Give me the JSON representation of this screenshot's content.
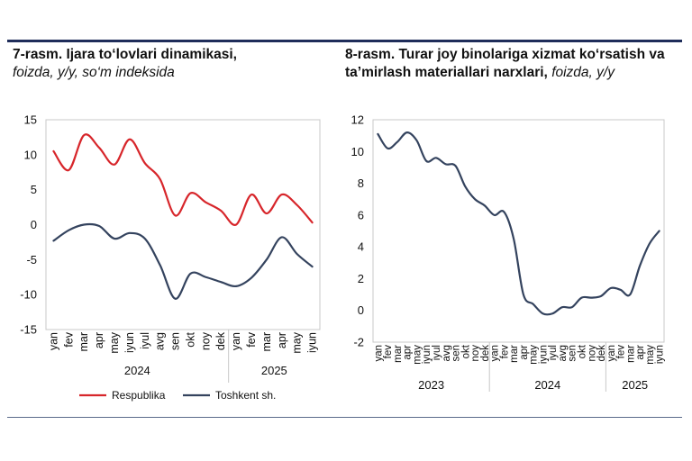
{
  "charts": [
    {
      "title": "7-rasm. Ijara to‘lovlari dinamikasi,",
      "subtitle": "foizda, y/y, so‘m indeksida"
    },
    {
      "title": "8-rasm. Turar joy binolariga xizmat ko‘rsatish va ta’mirlash materiallari narxlari,",
      "subtitle": "foizda, y/y"
    }
  ],
  "chart_data": [
    {
      "type": "line",
      "title": "7-rasm. Ijara to‘lovlari dinamikasi, foizda, y/y, so‘m indeksida",
      "categories": [
        "yan",
        "fev",
        "mar",
        "apr",
        "may",
        "iyun",
        "iyul",
        "avg",
        "sen",
        "okt",
        "noy",
        "dek",
        "yan",
        "fev",
        "mar",
        "apr",
        "may",
        "iyun"
      ],
      "year_groups": [
        {
          "label": "2024",
          "count": 12
        },
        {
          "label": "2025",
          "count": 6
        }
      ],
      "yticks": [
        15,
        10,
        5,
        0,
        -5,
        -10,
        -15
      ],
      "ylim": [
        -15,
        15
      ],
      "series": [
        {
          "name": "Respublika",
          "color": "#d7262b",
          "values": [
            10.5,
            7.8,
            12.8,
            11,
            8.6,
            12.2,
            8.8,
            6.5,
            1.3,
            4.5,
            3.2,
            2,
            0,
            4.3,
            1.6,
            4.3,
            2.8,
            0.3
          ]
        },
        {
          "name": "Toshkent sh.",
          "color": "#34435e",
          "values": [
            -2.3,
            -0.8,
            0,
            -0.2,
            -2,
            -1.2,
            -2,
            -5.8,
            -10.6,
            -7,
            -7.5,
            -8.2,
            -8.8,
            -7.6,
            -5,
            -1.8,
            -4.2,
            -6
          ]
        }
      ]
    },
    {
      "type": "line",
      "title": "8-rasm. Turar joy binolariga xizmat ko‘rsatish va ta’mirlash materiallari narxlari, foizda, y/y",
      "categories": [
        "yan",
        "fev",
        "mar",
        "apr",
        "may",
        "iyun",
        "iyul",
        "avg",
        "sen",
        "okt",
        "noy",
        "dek",
        "yan",
        "fev",
        "mar",
        "apr",
        "may",
        "iyun",
        "iyul",
        "avg",
        "sen",
        "okt",
        "noy",
        "dek",
        "yan",
        "fev",
        "mar",
        "apr",
        "may",
        "iyun"
      ],
      "year_groups": [
        {
          "label": "2023",
          "count": 12
        },
        {
          "label": "2024",
          "count": 12
        },
        {
          "label": "2025",
          "count": 6
        }
      ],
      "yticks": [
        12,
        10,
        8,
        6,
        4,
        2,
        0,
        -2
      ],
      "ylim": [
        -2,
        12
      ],
      "series": [
        {
          "name": "",
          "color": "#34435e",
          "values": [
            11.1,
            10.2,
            10.6,
            11.2,
            10.7,
            9.4,
            9.6,
            9.2,
            9.1,
            7.8,
            7,
            6.6,
            6,
            6.2,
            4.5,
            1,
            0.4,
            -0.2,
            -0.2,
            0.2,
            0.2,
            0.8,
            0.8,
            0.9,
            1.4,
            1.3,
            1,
            2.8,
            4.2,
            5
          ]
        }
      ]
    }
  ]
}
